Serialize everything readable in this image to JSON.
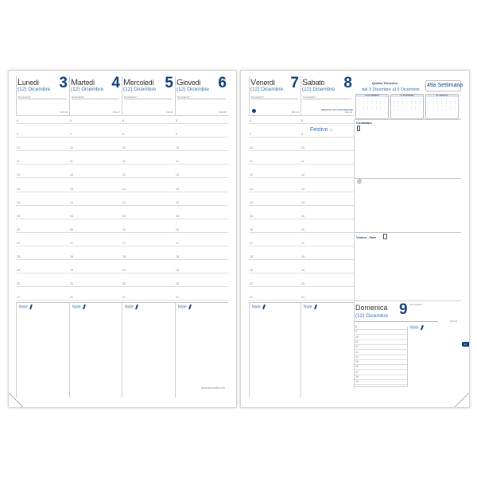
{
  "left_days": [
    {
      "name": "Lunedì",
      "num": "3",
      "month": "(12) Dicembre",
      "dominante": "Dominante*",
      "code": "337-28"
    },
    {
      "name": "Martedì",
      "num": "4",
      "month": "(12) Dicembre",
      "dominante": "Dominante*",
      "code": "338-27"
    },
    {
      "name": "Mercoledì",
      "num": "5",
      "month": "(12) Dicembre",
      "dominante": "Dominante*",
      "code": "339-26"
    },
    {
      "name": "Giovedì",
      "num": "6",
      "month": "(12) Dicembre",
      "dominante": "Dominante*",
      "code": "340-25"
    }
  ],
  "right_days": [
    {
      "name": "Venerdì",
      "num": "7",
      "month": "(12) Dicembre",
      "dominante": "Dominante*",
      "code": "341-24"
    },
    {
      "name": "Sabato",
      "num": "8",
      "month": "(12) Dicembre",
      "dominante": "Dominante*",
      "code": "342-23",
      "holiday_name": "IMMACOLATA CONCEZIONE",
      "festivo": "Festivo"
    }
  ],
  "hours": [
    "8",
    "9",
    "10",
    "11",
    "12",
    "13",
    "14",
    "15",
    "16",
    "17",
    "18",
    "19",
    "20",
    "21"
  ],
  "notes_label": "Note",
  "footer_url": "www.quovadis.com",
  "quarter": {
    "title": "Quarto Trimestre",
    "range": "dal 3 Dicembre al 9 Dicembre",
    "week": "49a Settimana",
    "months": [
      {
        "label": "11 NOVEMBRE"
      },
      {
        "label": "12 DICEMBRE"
      },
      {
        "label": "01 GENNAIO"
      }
    ]
  },
  "sidebar": {
    "contattare": "Contattare",
    "vedere": "Vedere - Fare"
  },
  "sunday": {
    "name": "Domenica",
    "num": "9",
    "month": "(12) Dicembre",
    "dominante": "Dominante*",
    "code": "343-22",
    "hours": [
      "8",
      "9",
      "10",
      "11",
      "12",
      "13",
      "14",
      "15",
      "16",
      "17",
      "18",
      "19"
    ]
  },
  "tab_label": "12",
  "colors": {
    "accent": "#123e78",
    "secondary": "#3a6ea8"
  }
}
